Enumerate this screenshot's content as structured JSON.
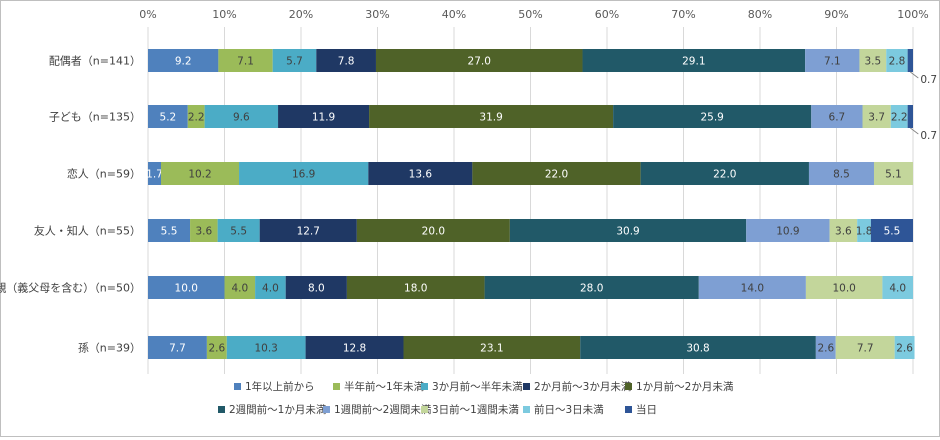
{
  "chart_data": {
    "type": "bar",
    "orientation": "horizontal",
    "stacked": true,
    "xlim": [
      0,
      100
    ],
    "x_ticks": [
      "0%",
      "10%",
      "20%",
      "30%",
      "40%",
      "50%",
      "60%",
      "70%",
      "80%",
      "90%",
      "100%"
    ],
    "grid": true,
    "legend_position": "bottom",
    "categories": [
      "配偶者（n=141）",
      "子ども（n=135）",
      "恋人（n=59）",
      "友人・知人（n=55）",
      "親（義父母を含む）（n=50）",
      "孫（n=39）"
    ],
    "series": [
      {
        "name": "1年以上前から",
        "color": "#4f81bd",
        "values": [
          9.2,
          5.2,
          1.7,
          5.5,
          10.0,
          7.7
        ]
      },
      {
        "name": "半年前～1年未満",
        "color": "#9bbb59",
        "values": [
          7.1,
          2.2,
          10.2,
          3.6,
          4.0,
          2.6
        ]
      },
      {
        "name": "3か月前～半年未満",
        "color": "#4bacc6",
        "values": [
          5.7,
          9.6,
          16.9,
          5.5,
          4.0,
          10.3
        ]
      },
      {
        "name": "2か月前～3か月未満",
        "color": "#1f3864",
        "values": [
          7.8,
          11.9,
          13.6,
          12.7,
          8.0,
          12.8
        ]
      },
      {
        "name": "1か月前～2か月未満",
        "color": "#4f6228",
        "values": [
          27.0,
          31.9,
          22.0,
          20.0,
          18.0,
          23.1
        ]
      },
      {
        "name": "2週間前～1か月未満",
        "color": "#215968",
        "values": [
          29.1,
          25.9,
          22.0,
          30.9,
          28.0,
          30.8
        ]
      },
      {
        "name": "1週間前～2週間未満",
        "color": "#7e9fd3",
        "values": [
          7.1,
          6.7,
          8.5,
          10.9,
          14.0,
          2.6
        ]
      },
      {
        "name": "3日前～1週間未満",
        "color": "#c3d69b",
        "values": [
          3.5,
          3.7,
          5.1,
          3.6,
          10.0,
          7.7
        ]
      },
      {
        "name": "前日～3日未満",
        "color": "#7ccadf",
        "values": [
          2.8,
          2.2,
          0,
          1.8,
          4.0,
          2.6
        ]
      },
      {
        "name": "当日",
        "color": "#2e5597",
        "values": [
          0.7,
          0.7,
          0,
          5.5,
          0,
          0
        ]
      }
    ],
    "data_labels": [
      [
        "9.2",
        "7.1",
        "5.7",
        "7.8",
        "27.0",
        "29.1",
        "7.1",
        "3.5",
        "2.8",
        "0.7"
      ],
      [
        "5.2",
        "2.2",
        "9.6",
        "11.9",
        "31.9",
        "25.9",
        "6.7",
        "3.7",
        "2.2",
        "0.7"
      ],
      [
        "1.7",
        "10.2",
        "16.9",
        "13.6",
        "22.0",
        "22.0",
        "8.5",
        "5.1",
        "",
        ""
      ],
      [
        "5.5",
        "3.6",
        "5.5",
        "12.7",
        "20.0",
        "30.9",
        "10.9",
        "3.6",
        "1.8",
        "5.5"
      ],
      [
        "10.0",
        "4.0",
        "4.0",
        "8.0",
        "18.0",
        "28.0",
        "14.0",
        "10.0",
        "4.0",
        ""
      ],
      [
        "7.7",
        "2.6",
        "10.3",
        "12.8",
        "23.1",
        "30.8",
        "2.6",
        "7.7",
        "2.6",
        ""
      ]
    ],
    "label_colors": {
      "dark_text": "#ffffff",
      "light_text": "#404040"
    }
  }
}
